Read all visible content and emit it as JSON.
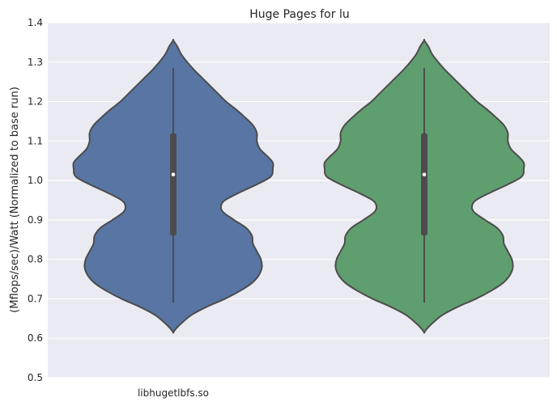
{
  "chart_data": {
    "type": "violin",
    "title": "Huge Pages for lu",
    "xlabel": "",
    "ylabel": "(Mflops/sec)/Watt (Normalized to base run)",
    "categories": [
      "libhugetlbfs.so",
      ""
    ],
    "ylim": [
      0.5,
      1.4
    ],
    "yticks": [
      "0.5",
      "0.6",
      "0.7",
      "0.8",
      "0.9",
      "1.0",
      "1.1",
      "1.2",
      "1.3",
      "1.4"
    ],
    "grid": true,
    "colors": [
      "#5875a4",
      "#5f9e6e"
    ],
    "series": [
      {
        "category": "libhugetlbfs.so",
        "color": "#5875a4",
        "median": 1.015,
        "q1": 0.86,
        "q3": 1.12,
        "whisker_low": 0.69,
        "whisker_high": 1.285,
        "density": [
          [
            0.615,
            0.0
          ],
          [
            0.625,
            0.03
          ],
          [
            0.64,
            0.09
          ],
          [
            0.66,
            0.19
          ],
          [
            0.68,
            0.34
          ],
          [
            0.7,
            0.52
          ],
          [
            0.72,
            0.67
          ],
          [
            0.74,
            0.79
          ],
          [
            0.76,
            0.86
          ],
          [
            0.78,
            0.89
          ],
          [
            0.8,
            0.88
          ],
          [
            0.82,
            0.84
          ],
          [
            0.84,
            0.8
          ],
          [
            0.86,
            0.79
          ],
          [
            0.88,
            0.73
          ],
          [
            0.9,
            0.61
          ],
          [
            0.92,
            0.5
          ],
          [
            0.935,
            0.48
          ],
          [
            0.95,
            0.52
          ],
          [
            0.97,
            0.67
          ],
          [
            0.99,
            0.84
          ],
          [
            1.01,
            0.98
          ],
          [
            1.03,
            1.0
          ],
          [
            1.045,
            1.0
          ],
          [
            1.06,
            0.95
          ],
          [
            1.08,
            0.87
          ],
          [
            1.1,
            0.84
          ],
          [
            1.12,
            0.84
          ],
          [
            1.14,
            0.8
          ],
          [
            1.16,
            0.72
          ],
          [
            1.18,
            0.63
          ],
          [
            1.2,
            0.53
          ],
          [
            1.22,
            0.45
          ],
          [
            1.24,
            0.37
          ],
          [
            1.26,
            0.29
          ],
          [
            1.28,
            0.21
          ],
          [
            1.3,
            0.14
          ],
          [
            1.32,
            0.08
          ],
          [
            1.34,
            0.04
          ],
          [
            1.355,
            0.0
          ]
        ]
      },
      {
        "category": "",
        "color": "#5f9e6e",
        "median": 1.015,
        "q1": 0.86,
        "q3": 1.12,
        "whisker_low": 0.69,
        "whisker_high": 1.285,
        "density": [
          [
            0.615,
            0.0
          ],
          [
            0.625,
            0.03
          ],
          [
            0.64,
            0.09
          ],
          [
            0.66,
            0.19
          ],
          [
            0.68,
            0.34
          ],
          [
            0.7,
            0.52
          ],
          [
            0.72,
            0.67
          ],
          [
            0.74,
            0.79
          ],
          [
            0.76,
            0.86
          ],
          [
            0.78,
            0.89
          ],
          [
            0.8,
            0.88
          ],
          [
            0.82,
            0.84
          ],
          [
            0.84,
            0.8
          ],
          [
            0.86,
            0.79
          ],
          [
            0.88,
            0.73
          ],
          [
            0.9,
            0.61
          ],
          [
            0.92,
            0.5
          ],
          [
            0.935,
            0.48
          ],
          [
            0.95,
            0.52
          ],
          [
            0.97,
            0.67
          ],
          [
            0.99,
            0.84
          ],
          [
            1.01,
            0.98
          ],
          [
            1.03,
            1.0
          ],
          [
            1.045,
            1.0
          ],
          [
            1.06,
            0.95
          ],
          [
            1.08,
            0.87
          ],
          [
            1.1,
            0.84
          ],
          [
            1.12,
            0.84
          ],
          [
            1.14,
            0.8
          ],
          [
            1.16,
            0.72
          ],
          [
            1.18,
            0.63
          ],
          [
            1.2,
            0.53
          ],
          [
            1.22,
            0.45
          ],
          [
            1.24,
            0.37
          ],
          [
            1.26,
            0.29
          ],
          [
            1.28,
            0.21
          ],
          [
            1.3,
            0.14
          ],
          [
            1.32,
            0.08
          ],
          [
            1.34,
            0.04
          ],
          [
            1.355,
            0.0
          ]
        ]
      }
    ]
  }
}
